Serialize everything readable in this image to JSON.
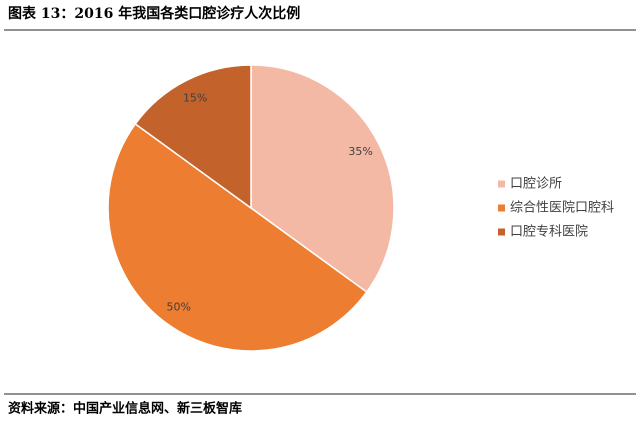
{
  "chart_data": {
    "type": "pie",
    "title": "图表 13：2016 年我国各类口腔诊疗人次比例",
    "categories": [
      "口腔诊所",
      "综合性医院口腔科",
      "口腔专科医院"
    ],
    "values": [
      35,
      50,
      15
    ],
    "value_labels": [
      "35%",
      "50%",
      "15%"
    ],
    "colors": [
      "#f4b9a4",
      "#ed7d31",
      "#c4622b"
    ],
    "legend": "right"
  },
  "source": "资料来源：中国产业信息网、新三板智库"
}
